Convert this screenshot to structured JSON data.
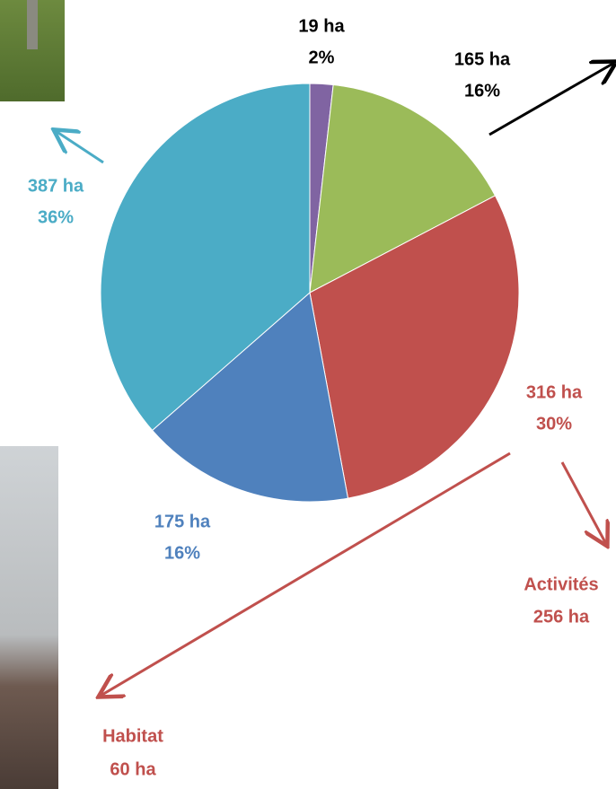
{
  "chart_data": {
    "type": "pie",
    "values": [
      19,
      165,
      316,
      175,
      387
    ],
    "value_labels": [
      "19 ha",
      "165 ha",
      "316 ha",
      "175 ha",
      "387 ha"
    ],
    "percentages": [
      2,
      16,
      30,
      16,
      36
    ],
    "percentage_labels": [
      "2%",
      "16%",
      "30%",
      "16%",
      "36%"
    ],
    "colors": [
      "#8064a2",
      "#9bbb59",
      "#c0504d",
      "#4f81bd",
      "#4bacc6"
    ],
    "label_colors": [
      "#000000",
      "#000000",
      "#c0504d",
      "#4f81bd",
      "#4bacc6"
    ],
    "annotations": [
      {
        "label": "Activités",
        "value_label": "256 ha"
      },
      {
        "label": "Habitat",
        "value_label": "60 ha"
      }
    ]
  }
}
